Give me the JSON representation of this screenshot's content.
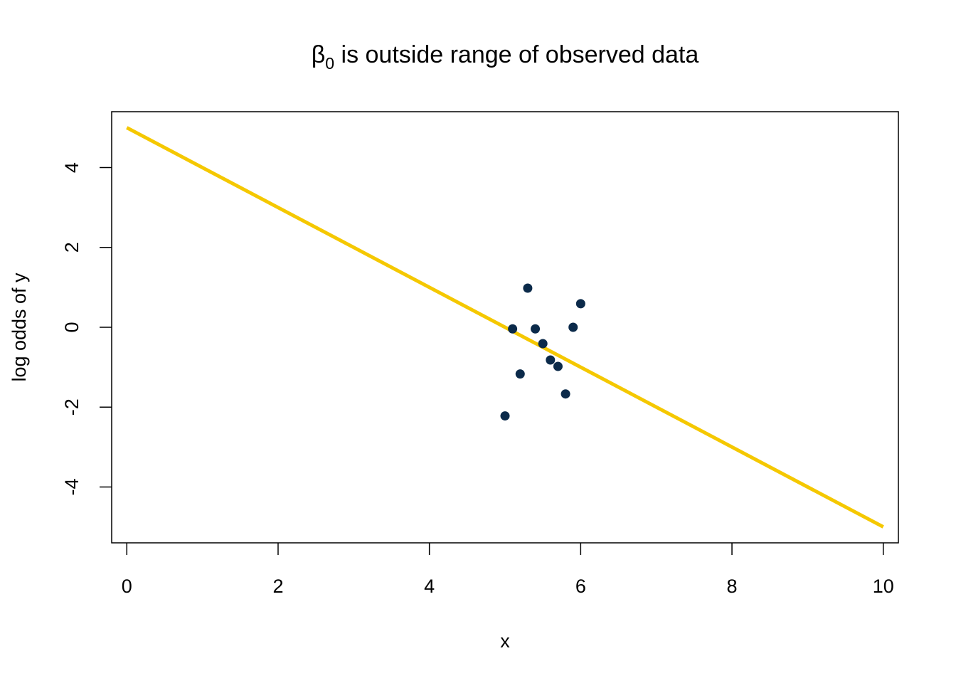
{
  "chart_data": {
    "type": "scatter",
    "title": {
      "greek": "β",
      "subscript": "0",
      "text": " is outside range of observed data"
    },
    "xlabel": "x",
    "ylabel": "log odds of y",
    "xlim": [
      -0.2,
      10.2
    ],
    "ylim": [
      -5.4,
      5.4
    ],
    "x_ticks": [
      0,
      2,
      4,
      6,
      8,
      10
    ],
    "x_tick_labels": [
      "0",
      "2",
      "4",
      "6",
      "8",
      "10"
    ],
    "y_ticks": [
      -4,
      -2,
      0,
      2,
      4
    ],
    "y_tick_labels": [
      "-4",
      "-2",
      "0",
      "2",
      "4"
    ],
    "grid": false,
    "line": {
      "x": [
        0,
        10
      ],
      "y": [
        5,
        -5
      ],
      "color": "#f5c800"
    },
    "points": {
      "color": "#0b2a4a",
      "x": [
        5.0,
        5.1,
        5.2,
        5.3,
        5.4,
        5.5,
        5.6,
        5.7,
        5.8,
        5.9,
        6.0
      ],
      "y": [
        -2.22,
        -0.04,
        -1.17,
        0.98,
        -0.04,
        -0.41,
        -0.82,
        -0.98,
        -1.67,
        0.0,
        0.59
      ]
    }
  }
}
